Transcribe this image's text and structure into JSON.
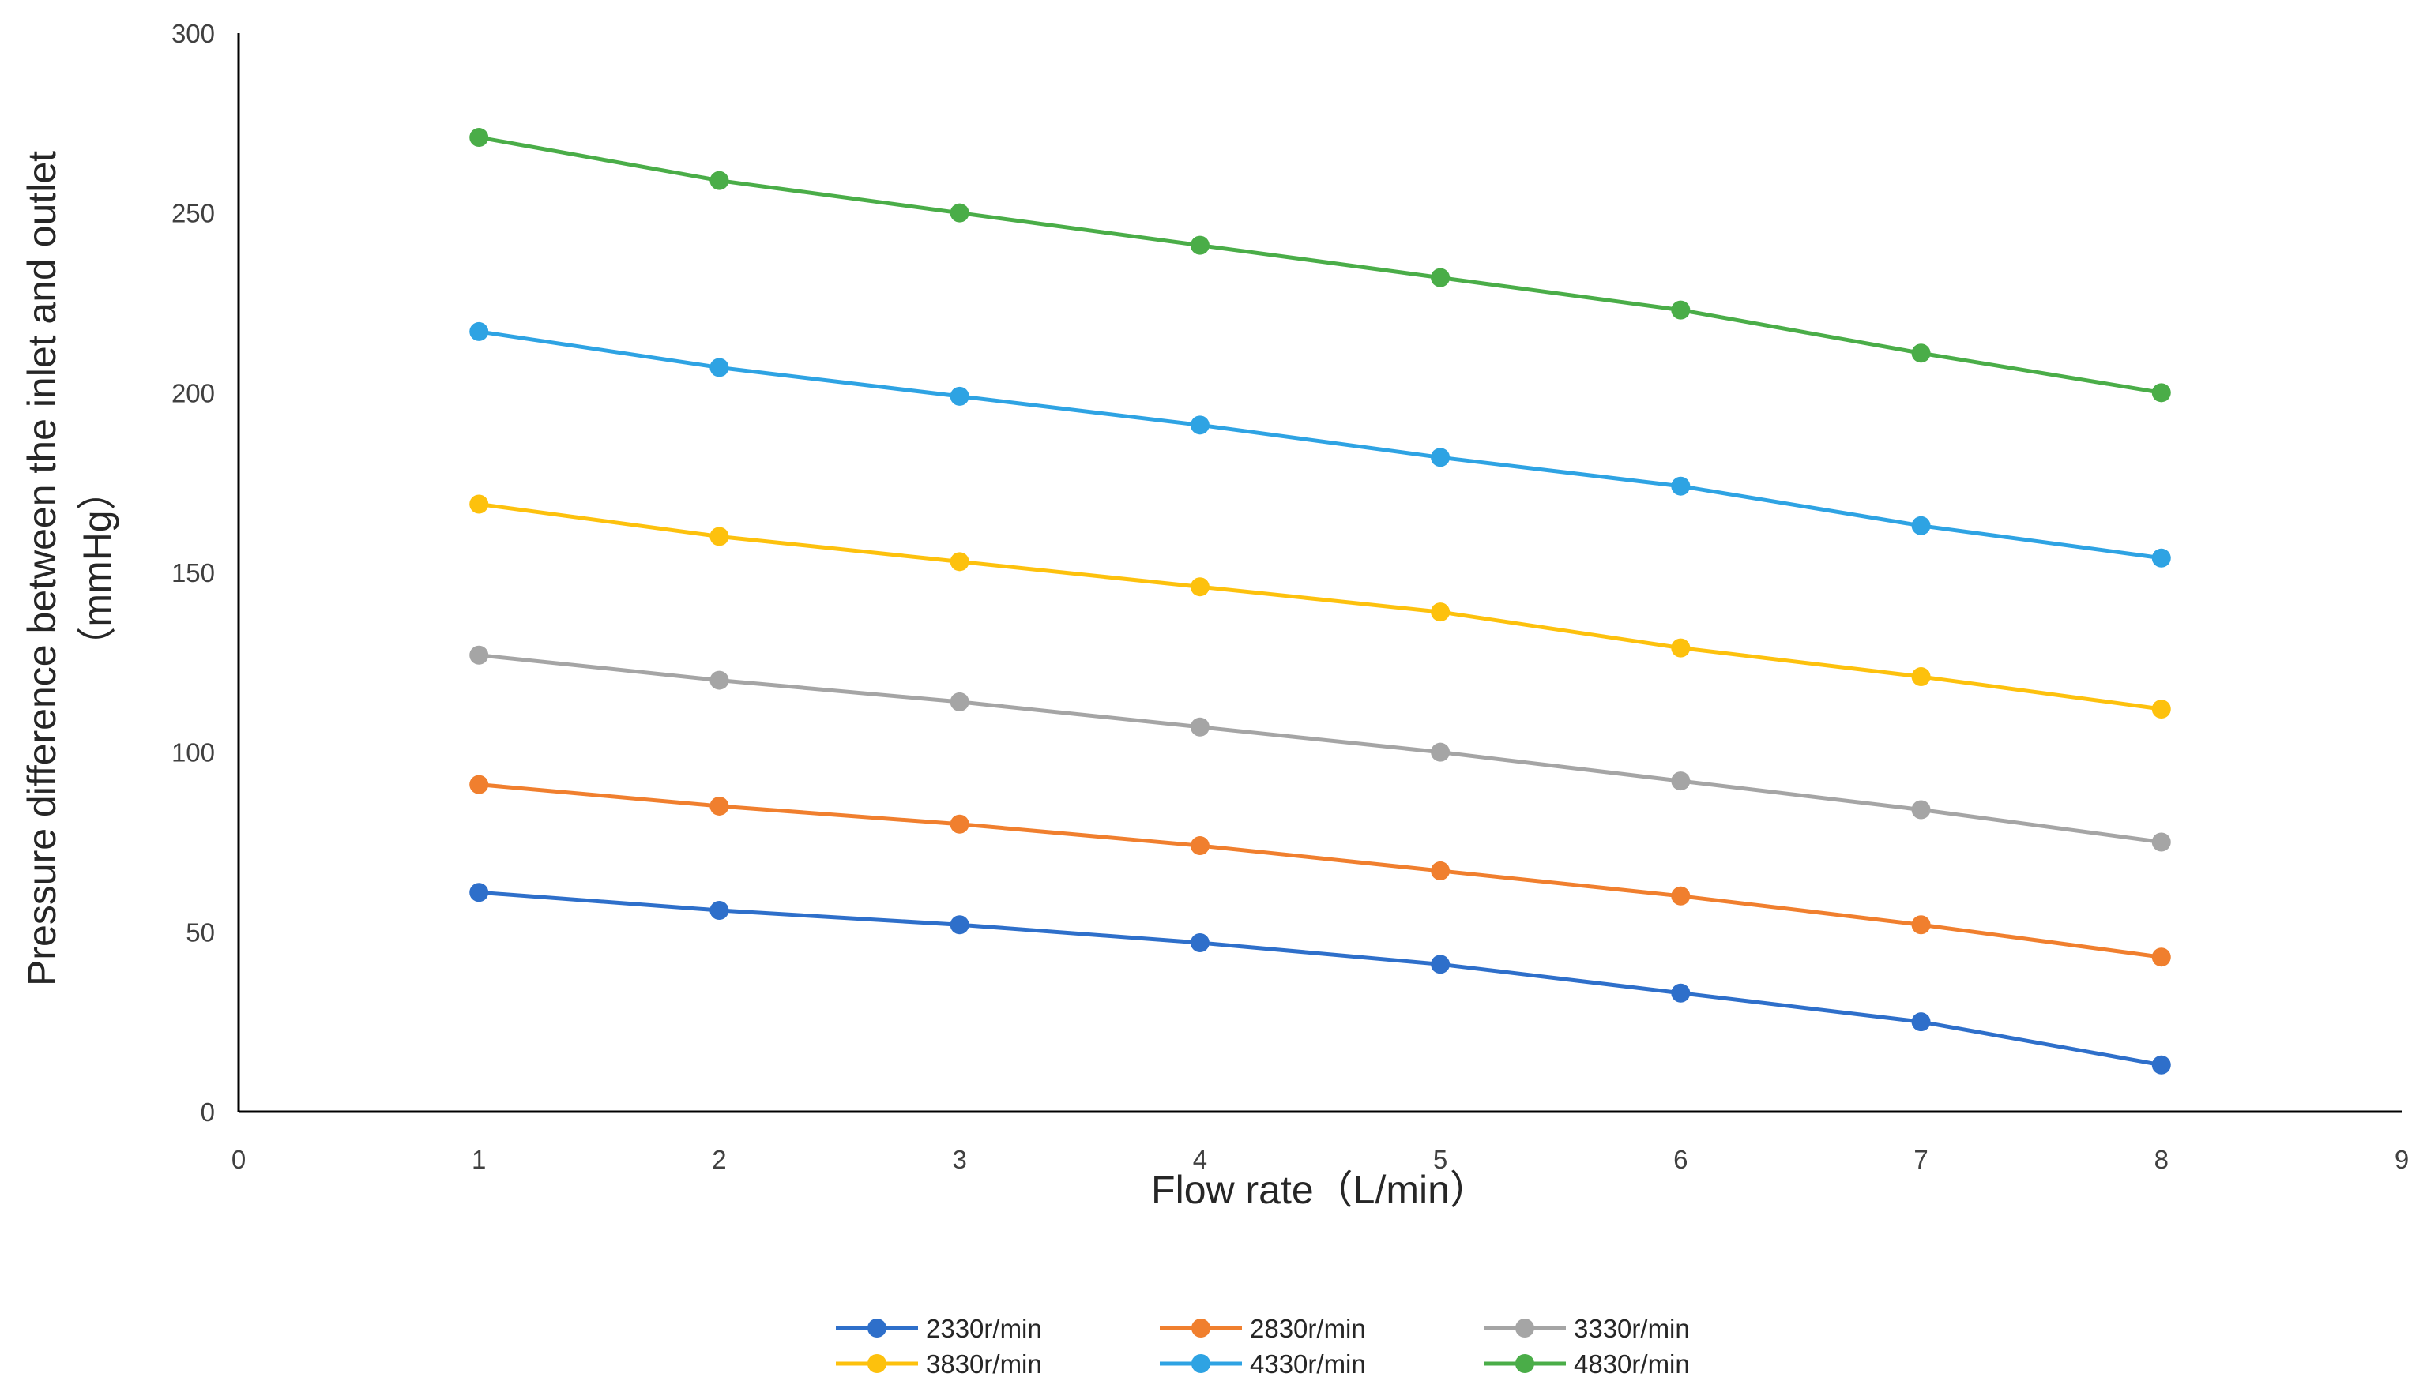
{
  "chart_data": {
    "type": "line",
    "title": "",
    "xlabel": "Flow rate（L/min）",
    "ylabel_line1": "Pressure difference between the inlet and outlet",
    "ylabel_line2": "（mmHg）",
    "xlim": [
      0,
      9
    ],
    "ylim": [
      0,
      300
    ],
    "x_ticks": [
      "0",
      "1",
      "2",
      "3",
      "4",
      "5",
      "6",
      "7",
      "8",
      "9"
    ],
    "y_ticks": [
      "0",
      "50",
      "100",
      "150",
      "200",
      "250",
      "300"
    ],
    "grid": false,
    "legend_position": "bottom",
    "x": [
      1,
      2,
      3,
      4,
      5,
      6,
      7,
      8
    ],
    "series": [
      {
        "name": "2330r/min",
        "color": "#2e6fca",
        "values": [
          61,
          56,
          52,
          47,
          41,
          33,
          25,
          13
        ]
      },
      {
        "name": "2830r/min",
        "color": "#f07f2e",
        "values": [
          91,
          85,
          80,
          74,
          67,
          60,
          52,
          43
        ]
      },
      {
        "name": "3330r/min",
        "color": "#a5a5a5",
        "values": [
          127,
          120,
          114,
          107,
          100,
          92,
          84,
          75
        ]
      },
      {
        "name": "3830r/min",
        "color": "#fdc10d",
        "values": [
          169,
          160,
          153,
          146,
          139,
          129,
          121,
          112
        ]
      },
      {
        "name": "4330r/min",
        "color": "#2ea3e3",
        "values": [
          217,
          207,
          199,
          191,
          182,
          174,
          163,
          154
        ]
      },
      {
        "name": "4830r/min",
        "color": "#4aad48",
        "values": [
          271,
          259,
          250,
          241,
          232,
          223,
          211,
          200
        ]
      }
    ]
  }
}
